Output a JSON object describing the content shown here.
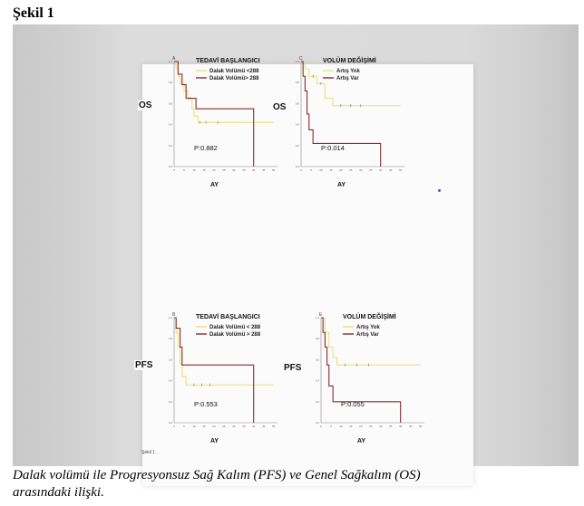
{
  "figure_title": "Şekil 1",
  "caption_line1": "Dalak volümü ile Progresyonsuz Sağ Kalım (PFS) ve Genel Sağkalım (OS)",
  "caption_line2": "arasındaki ilişki.",
  "footnote": "Şekil 1 .",
  "colors": {
    "yellow": "#e9e27a",
    "darkred": "#8b2a2f"
  },
  "chart_data": [
    {
      "type": "line",
      "panel_letter": "A",
      "side_label": "OS",
      "title": "TEDAVİ BAŞLANGICI",
      "xlabel": "AY",
      "p_value": "P:0.882",
      "x_ticks": [
        "0",
        "5",
        "10",
        "15",
        "20",
        "25",
        "30",
        "35",
        "40",
        "45",
        "50"
      ],
      "y_ticks": [
        "0.0",
        "0.2",
        "0.4",
        "0.6",
        "0.8",
        "1.0"
      ],
      "xlim": [
        0,
        52
      ],
      "ylim": [
        0,
        1
      ],
      "series": [
        {
          "name": "Dalak Volümü <288",
          "color": "#e9e27a",
          "x": [
            0,
            1,
            2,
            3,
            5,
            7,
            9,
            10,
            12,
            50
          ],
          "y": [
            1.0,
            0.93,
            0.86,
            0.79,
            0.72,
            0.65,
            0.55,
            0.48,
            0.42,
            0.42
          ],
          "censored": [
            [
              13,
              0.42
            ],
            [
              16,
              0.42
            ],
            [
              22,
              0.42
            ]
          ]
        },
        {
          "name": "Dalak Volümü> 288",
          "color": "#8b2a2f",
          "x": [
            0,
            2,
            4,
            6,
            11,
            40
          ],
          "y": [
            1.0,
            0.88,
            0.78,
            0.65,
            0.55,
            0.0
          ],
          "censored": [
            [
              8,
              0.65
            ]
          ]
        }
      ]
    },
    {
      "type": "line",
      "panel_letter": "C",
      "side_label": "OS",
      "title": "VOLÜM DEĞİŞİMİ",
      "xlabel": "AY",
      "p_value": "P:0.014",
      "x_ticks": [
        "0",
        "5",
        "10",
        "15",
        "20",
        "25",
        "30",
        "35",
        "40",
        "45",
        "50"
      ],
      "y_ticks": [
        "0.0",
        "0.2",
        "0.4",
        "0.6",
        "0.8",
        "1.0"
      ],
      "xlim": [
        0,
        52
      ],
      "ylim": [
        0,
        1
      ],
      "series": [
        {
          "name": "Artış Yok",
          "color": "#e9e27a",
          "x": [
            0,
            2,
            4,
            8,
            12,
            16,
            50
          ],
          "y": [
            1.0,
            0.93,
            0.86,
            0.79,
            0.65,
            0.58,
            0.58
          ],
          "censored": [
            [
              6,
              0.86
            ],
            [
              10,
              0.79
            ],
            [
              20,
              0.58
            ],
            [
              25,
              0.58
            ],
            [
              30,
              0.58
            ]
          ]
        },
        {
          "name": "Artış Var",
          "color": "#8b2a2f",
          "x": [
            0,
            1,
            2,
            3,
            4,
            6,
            40
          ],
          "y": [
            1.0,
            0.86,
            0.72,
            0.5,
            0.35,
            0.22,
            0.0
          ],
          "censored": []
        }
      ]
    },
    {
      "type": "line",
      "panel_letter": "B",
      "side_label": "PFS",
      "title": "TEDAVİ BAŞLANGICI",
      "xlabel": "AY",
      "p_value": "P:0.553",
      "x_ticks": [
        "0",
        "5",
        "10",
        "15",
        "20",
        "25",
        "30",
        "35",
        "40",
        "45",
        "50"
      ],
      "y_ticks": [
        "0.0",
        "0.2",
        "0.4",
        "0.6",
        "0.8",
        "1.0"
      ],
      "xlim": [
        0,
        52
      ],
      "ylim": [
        0,
        1
      ],
      "series": [
        {
          "name": "Dalak Volümü < 288",
          "color": "#e9e27a",
          "x": [
            0,
            1,
            2,
            3,
            4,
            6,
            50
          ],
          "y": [
            1.0,
            0.86,
            0.72,
            0.56,
            0.44,
            0.36,
            0.36
          ],
          "censored": [
            [
              10,
              0.36
            ],
            [
              14,
              0.36
            ],
            [
              18,
              0.36
            ]
          ]
        },
        {
          "name": "Dalak Volümü > 288",
          "color": "#8b2a2f",
          "x": [
            0,
            1,
            3,
            4,
            11,
            40
          ],
          "y": [
            1.0,
            0.9,
            0.72,
            0.55,
            0.55,
            0.0
          ],
          "censored": []
        }
      ]
    },
    {
      "type": "line",
      "panel_letter": "E",
      "side_label": "PFS",
      "title": "VOLÜM DEĞİŞİMİ",
      "xlabel": "AY",
      "p_value": "P:0.055",
      "x_ticks": [
        "0",
        "5",
        "10",
        "15",
        "20",
        "25",
        "30",
        "35",
        "40",
        "45",
        "50"
      ],
      "y_ticks": [
        "0.0",
        "0.2",
        "0.4",
        "0.6",
        "0.8",
        "1.0"
      ],
      "xlim": [
        0,
        52
      ],
      "ylim": [
        0,
        1
      ],
      "series": [
        {
          "name": "Artış Yok",
          "color": "#e9e27a",
          "x": [
            0,
            2,
            4,
            6,
            8,
            50
          ],
          "y": [
            1.0,
            0.86,
            0.72,
            0.62,
            0.55,
            0.55
          ],
          "censored": [
            [
              12,
              0.55
            ],
            [
              18,
              0.55
            ],
            [
              24,
              0.55
            ]
          ]
        },
        {
          "name": "Artış Var",
          "color": "#8b2a2f",
          "x": [
            0,
            1,
            2,
            3,
            4,
            6,
            40
          ],
          "y": [
            1.0,
            0.86,
            0.72,
            0.55,
            0.35,
            0.2,
            0.0
          ],
          "censored": []
        }
      ]
    }
  ]
}
